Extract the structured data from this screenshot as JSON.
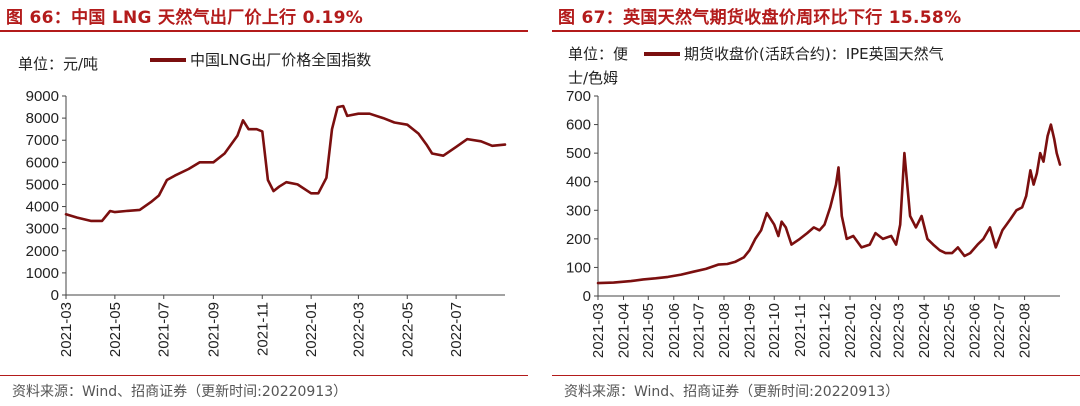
{
  "figures": [
    {
      "title": "图 66：中国 LNG 天然气出厂价上行 0.19%",
      "unit": "单位：元/吨",
      "legend": "中国LNG出厂价格全国指数",
      "source": "资料来源：Wind、招商证券（更新时间:20220913）"
    },
    {
      "title": "图 67：英国天然气期货收盘价周环比下行 15.58%",
      "unit_line1": "单位：便",
      "unit_line2": "士/色姆",
      "legend": "期货收盘价(活跃合约)：IPE英国天然气",
      "source": "资料来源：Wind、招商证券（更新时间:20220913）"
    }
  ],
  "chart_data": [
    {
      "type": "line",
      "line_color": "#7b0f0f",
      "ylim": [
        0,
        9000
      ],
      "yticks": [
        0,
        1000,
        2000,
        3000,
        4000,
        5000,
        6000,
        7000,
        8000,
        9000
      ],
      "xlim": [
        "2021-03-01",
        "2022-08-31"
      ],
      "xticks": [
        "2021-03",
        "2021-05",
        "2021-07",
        "2021-09",
        "2021-11",
        "2022-01",
        "2022-03",
        "2022-05",
        "2022-07"
      ],
      "series": [
        {
          "x": [
            "2021-03-01",
            "2021-03-15",
            "2021-04-01",
            "2021-04-15",
            "2021-04-25",
            "2021-05-01",
            "2021-05-15",
            "2021-06-01",
            "2021-06-15",
            "2021-06-25",
            "2021-07-05",
            "2021-07-15",
            "2021-08-01",
            "2021-08-15",
            "2021-09-01",
            "2021-09-15",
            "2021-10-01",
            "2021-10-08",
            "2021-10-15",
            "2021-10-25",
            "2021-11-01",
            "2021-11-08",
            "2021-11-15",
            "2021-11-22",
            "2021-12-01",
            "2021-12-15",
            "2022-01-01",
            "2022-01-10",
            "2022-01-20",
            "2022-01-27",
            "2022-02-03",
            "2022-02-10",
            "2022-02-15",
            "2022-03-01",
            "2022-03-15",
            "2022-04-01",
            "2022-04-15",
            "2022-05-01",
            "2022-05-15",
            "2022-05-25",
            "2022-06-01",
            "2022-06-15",
            "2022-07-01",
            "2022-07-15",
            "2022-08-01",
            "2022-08-15",
            "2022-08-31"
          ],
          "values": [
            3650,
            3500,
            3350,
            3350,
            3800,
            3750,
            3800,
            3850,
            4200,
            4500,
            5200,
            5400,
            5700,
            6000,
            6000,
            6400,
            7200,
            7900,
            7500,
            7500,
            7400,
            5200,
            4700,
            4900,
            5100,
            5000,
            4600,
            4600,
            5300,
            7500,
            8500,
            8550,
            8100,
            8200,
            8200,
            8000,
            7800,
            7700,
            7300,
            6800,
            6400,
            6300,
            6700,
            7050,
            6950,
            6750,
            6800
          ]
        }
      ]
    },
    {
      "type": "line",
      "line_color": "#7b0f0f",
      "ylim": [
        0,
        700
      ],
      "yticks": [
        0,
        100,
        200,
        300,
        400,
        500,
        600,
        700
      ],
      "xlim": [
        "2021-03-01",
        "2022-09-13"
      ],
      "xticks": [
        "2021-03",
        "2021-04",
        "2021-05",
        "2021-06",
        "2021-07",
        "2021-08",
        "2021-09",
        "2021-10",
        "2021-11",
        "2021-12",
        "2022-01",
        "2022-02",
        "2022-03",
        "2022-04",
        "2022-05",
        "2022-06",
        "2022-07",
        "2022-08"
      ],
      "series": [
        {
          "x": [
            "2021-03-01",
            "2021-03-20",
            "2021-04-10",
            "2021-04-25",
            "2021-05-10",
            "2021-05-25",
            "2021-06-10",
            "2021-06-25",
            "2021-07-10",
            "2021-07-25",
            "2021-08-05",
            "2021-08-15",
            "2021-08-25",
            "2021-09-01",
            "2021-09-08",
            "2021-09-15",
            "2021-09-22",
            "2021-10-01",
            "2021-10-06",
            "2021-10-10",
            "2021-10-15",
            "2021-10-22",
            "2021-11-01",
            "2021-11-10",
            "2021-11-18",
            "2021-11-25",
            "2021-12-01",
            "2021-12-08",
            "2021-12-15",
            "2021-12-18",
            "2021-12-22",
            "2021-12-28",
            "2022-01-05",
            "2022-01-15",
            "2022-01-25",
            "2022-02-01",
            "2022-02-10",
            "2022-02-20",
            "2022-02-26",
            "2022-03-03",
            "2022-03-08",
            "2022-03-15",
            "2022-03-22",
            "2022-03-29",
            "2022-04-05",
            "2022-04-12",
            "2022-04-20",
            "2022-04-27",
            "2022-05-05",
            "2022-05-12",
            "2022-05-20",
            "2022-05-27",
            "2022-06-05",
            "2022-06-12",
            "2022-06-20",
            "2022-06-27",
            "2022-07-05",
            "2022-07-10",
            "2022-07-15",
            "2022-07-22",
            "2022-07-29",
            "2022-08-03",
            "2022-08-08",
            "2022-08-12",
            "2022-08-16",
            "2022-08-20",
            "2022-08-24",
            "2022-08-29",
            "2022-09-02",
            "2022-09-06",
            "2022-09-09",
            "2022-09-13"
          ],
          "values": [
            45,
            47,
            52,
            58,
            62,
            67,
            75,
            85,
            95,
            110,
            112,
            120,
            135,
            160,
            200,
            230,
            290,
            250,
            210,
            260,
            240,
            180,
            200,
            220,
            240,
            230,
            250,
            310,
            390,
            450,
            280,
            200,
            210,
            170,
            180,
            220,
            200,
            210,
            180,
            250,
            500,
            280,
            240,
            280,
            200,
            180,
            160,
            150,
            150,
            170,
            140,
            150,
            180,
            200,
            240,
            170,
            230,
            250,
            270,
            300,
            310,
            350,
            440,
            390,
            430,
            500,
            470,
            560,
            600,
            550,
            500,
            460
          ]
        }
      ]
    }
  ]
}
